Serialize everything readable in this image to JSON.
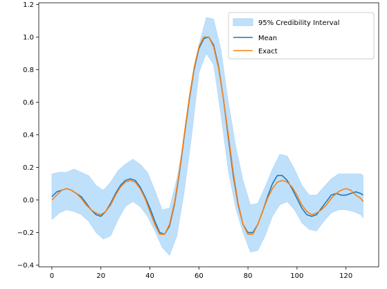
{
  "chart_data": {
    "type": "line",
    "title": "",
    "xlabel": "",
    "ylabel": "",
    "xlim": [
      -5.35,
      133.35
    ],
    "ylim": [
      -0.41,
      1.21
    ],
    "xticks": [
      0,
      20,
      40,
      60,
      80,
      100,
      120
    ],
    "xtick_labels": [
      "0",
      "20",
      "40",
      "60",
      "80",
      "100",
      "120"
    ],
    "yticks": [
      -0.4,
      -0.2,
      0.0,
      0.2,
      0.4,
      0.6,
      0.8,
      1.0,
      1.2
    ],
    "ytick_labels": [
      "−0.4",
      "−0.2",
      "0.0",
      "0.2",
      "0.4",
      "0.6",
      "0.8",
      "1.0",
      "1.2"
    ],
    "grid": false,
    "legend": {
      "position": "top-right",
      "entries": [
        {
          "label": "95% Credibility Interval",
          "kind": "band",
          "color": "#bfe0fb"
        },
        {
          "label": "Mean",
          "kind": "line",
          "color": "#1f77b4"
        },
        {
          "label": "Exact",
          "kind": "line",
          "color": "#ff7f0e"
        }
      ]
    },
    "series": [
      {
        "name": "95% Credibility Interval",
        "kind": "band",
        "color": "#bfe0fb",
        "x": [
          0,
          3,
          6,
          9,
          12,
          15,
          18,
          21,
          24,
          27,
          30,
          33,
          36,
          39,
          42,
          45,
          48,
          51,
          54,
          57,
          60,
          63,
          66,
          69,
          72,
          75,
          78,
          81,
          84,
          87,
          90,
          93,
          96,
          99,
          102,
          105,
          108,
          111,
          114,
          117,
          120,
          123,
          126,
          127
        ],
        "upper": [
          0.16,
          0.17,
          0.17,
          0.19,
          0.17,
          0.15,
          0.09,
          0.06,
          0.11,
          0.18,
          0.22,
          0.25,
          0.22,
          0.17,
          0.06,
          -0.06,
          -0.05,
          0.13,
          0.38,
          0.68,
          0.95,
          1.12,
          1.11,
          0.92,
          0.6,
          0.33,
          0.12,
          -0.03,
          -0.02,
          0.08,
          0.19,
          0.28,
          0.27,
          0.19,
          0.09,
          0.03,
          0.03,
          0.08,
          0.13,
          0.16,
          0.16,
          0.16,
          0.16,
          0.15
        ],
        "lower": [
          -0.12,
          -0.08,
          -0.06,
          -0.07,
          -0.09,
          -0.13,
          -0.2,
          -0.24,
          -0.22,
          -0.12,
          -0.04,
          -0.01,
          -0.04,
          -0.1,
          -0.19,
          -0.29,
          -0.34,
          -0.22,
          0.05,
          0.39,
          0.78,
          0.9,
          0.83,
          0.52,
          0.18,
          -0.05,
          -0.2,
          -0.32,
          -0.31,
          -0.22,
          -0.1,
          -0.03,
          -0.01,
          -0.06,
          -0.14,
          -0.18,
          -0.19,
          -0.13,
          -0.08,
          -0.06,
          -0.06,
          -0.07,
          -0.09,
          -0.11
        ]
      },
      {
        "name": "Mean",
        "kind": "line",
        "color": "#1f77b4",
        "x": [
          0,
          2,
          4,
          6,
          8,
          10,
          12,
          14,
          16,
          18,
          20,
          22,
          24,
          26,
          28,
          30,
          32,
          34,
          36,
          38,
          40,
          42,
          44,
          46,
          48,
          50,
          52,
          54,
          56,
          58,
          60,
          62,
          64,
          66,
          68,
          70,
          72,
          74,
          76,
          78,
          80,
          82,
          84,
          86,
          88,
          90,
          92,
          94,
          96,
          98,
          100,
          102,
          104,
          106,
          108,
          110,
          112,
          114,
          116,
          118,
          120,
          122,
          124,
          126,
          127
        ],
        "y": [
          0.02,
          0.05,
          0.06,
          0.07,
          0.06,
          0.04,
          0.02,
          -0.02,
          -0.06,
          -0.09,
          -0.1,
          -0.07,
          -0.02,
          0.04,
          0.09,
          0.12,
          0.13,
          0.12,
          0.08,
          0.02,
          -0.05,
          -0.13,
          -0.2,
          -0.21,
          -0.16,
          -0.03,
          0.16,
          0.39,
          0.61,
          0.8,
          0.93,
          0.99,
          1.0,
          0.95,
          0.82,
          0.62,
          0.38,
          0.15,
          -0.03,
          -0.15,
          -0.2,
          -0.2,
          -0.15,
          -0.07,
          0.02,
          0.1,
          0.15,
          0.15,
          0.12,
          0.07,
          0.01,
          -0.05,
          -0.09,
          -0.1,
          -0.09,
          -0.05,
          -0.01,
          0.03,
          0.04,
          0.03,
          0.03,
          0.04,
          0.05,
          0.04,
          0.03
        ]
      },
      {
        "name": "Exact",
        "kind": "line",
        "color": "#ff7f0e",
        "x": [
          0,
          2,
          4,
          6,
          8,
          10,
          12,
          14,
          16,
          18,
          20,
          22,
          24,
          26,
          28,
          30,
          32,
          34,
          36,
          38,
          40,
          42,
          44,
          46,
          48,
          50,
          52,
          54,
          56,
          58,
          60,
          62,
          64,
          66,
          68,
          70,
          72,
          74,
          76,
          78,
          80,
          82,
          84,
          86,
          88,
          90,
          92,
          94,
          96,
          98,
          100,
          102,
          104,
          106,
          108,
          110,
          112,
          114,
          116,
          118,
          120,
          122,
          124,
          126,
          127
        ],
        "y": [
          0.0,
          0.03,
          0.06,
          0.07,
          0.06,
          0.04,
          0.01,
          -0.03,
          -0.06,
          -0.08,
          -0.09,
          -0.07,
          -0.03,
          0.03,
          0.08,
          0.11,
          0.12,
          0.11,
          0.07,
          0.01,
          -0.07,
          -0.15,
          -0.21,
          -0.21,
          -0.15,
          -0.02,
          0.17,
          0.4,
          0.62,
          0.81,
          0.94,
          1.0,
          1.0,
          0.94,
          0.81,
          0.62,
          0.4,
          0.17,
          -0.02,
          -0.15,
          -0.21,
          -0.21,
          -0.15,
          -0.07,
          0.01,
          0.07,
          0.11,
          0.12,
          0.11,
          0.08,
          0.03,
          -0.03,
          -0.07,
          -0.09,
          -0.08,
          -0.06,
          -0.03,
          0.01,
          0.04,
          0.06,
          0.07,
          0.06,
          0.03,
          0.01,
          -0.01
        ]
      }
    ]
  }
}
